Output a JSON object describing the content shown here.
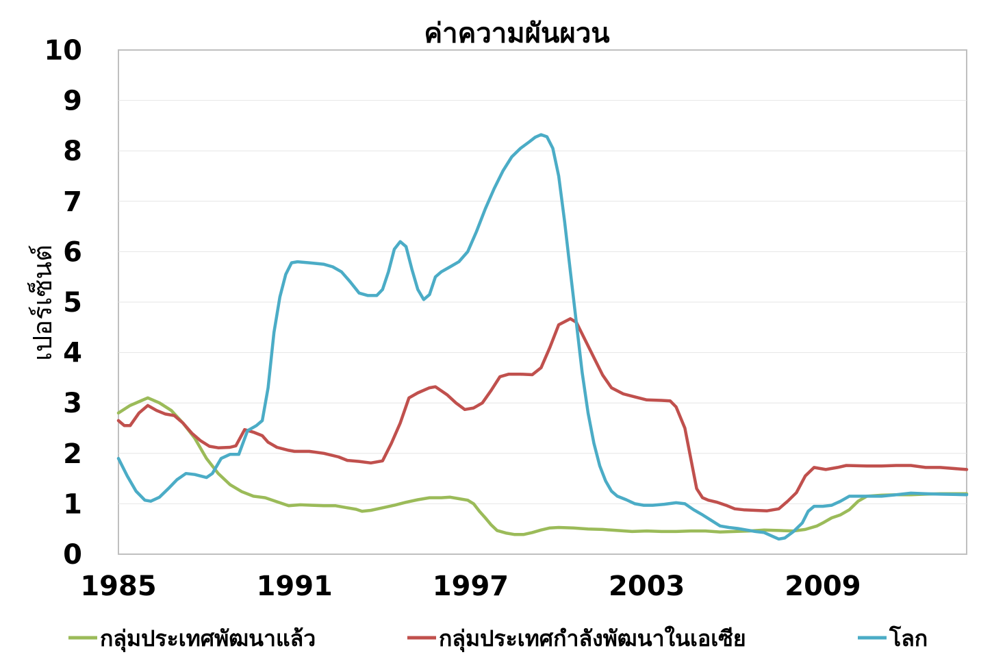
{
  "chart_data": {
    "type": "line",
    "title": "ค่าความผันผวน",
    "ylabel": "เปอร์เซ็นต์",
    "xlabel": "",
    "xlim": [
      1985,
      2013.9
    ],
    "ylim": [
      0,
      10
    ],
    "yticks": [
      0,
      1,
      2,
      3,
      4,
      5,
      6,
      7,
      8,
      9,
      10
    ],
    "xticks": [
      1985,
      1991,
      1997,
      2003,
      2009
    ],
    "grid": "horizontal",
    "legend_position": "bottom",
    "series": [
      {
        "name": "กลุ่มประเทศพัฒนาแล้ว",
        "color": "#9BBB59",
        "points": [
          [
            1985.0,
            2.8
          ],
          [
            1985.4,
            2.95
          ],
          [
            1985.8,
            3.05
          ],
          [
            1986.0,
            3.1
          ],
          [
            1986.4,
            3.0
          ],
          [
            1986.8,
            2.85
          ],
          [
            1987.2,
            2.6
          ],
          [
            1987.6,
            2.3
          ],
          [
            1988.0,
            1.9
          ],
          [
            1988.4,
            1.6
          ],
          [
            1988.8,
            1.38
          ],
          [
            1989.2,
            1.24
          ],
          [
            1989.6,
            1.15
          ],
          [
            1990.0,
            1.12
          ],
          [
            1990.3,
            1.06
          ],
          [
            1990.6,
            1.0
          ],
          [
            1990.8,
            0.96
          ],
          [
            1991.2,
            0.98
          ],
          [
            1991.6,
            0.97
          ],
          [
            1992.0,
            0.96
          ],
          [
            1992.4,
            0.96
          ],
          [
            1992.8,
            0.92
          ],
          [
            1993.1,
            0.89
          ],
          [
            1993.3,
            0.85
          ],
          [
            1993.6,
            0.87
          ],
          [
            1994.0,
            0.92
          ],
          [
            1994.4,
            0.97
          ],
          [
            1994.8,
            1.03
          ],
          [
            1995.2,
            1.08
          ],
          [
            1995.6,
            1.12
          ],
          [
            1996.0,
            1.12
          ],
          [
            1996.3,
            1.13
          ],
          [
            1996.6,
            1.1
          ],
          [
            1996.9,
            1.07
          ],
          [
            1997.1,
            1.0
          ],
          [
            1997.3,
            0.85
          ],
          [
            1997.5,
            0.72
          ],
          [
            1997.7,
            0.58
          ],
          [
            1997.9,
            0.47
          ],
          [
            1998.2,
            0.42
          ],
          [
            1998.5,
            0.39
          ],
          [
            1998.8,
            0.39
          ],
          [
            1999.1,
            0.43
          ],
          [
            1999.4,
            0.48
          ],
          [
            1999.7,
            0.52
          ],
          [
            2000.0,
            0.53
          ],
          [
            2000.5,
            0.52
          ],
          [
            2001.0,
            0.5
          ],
          [
            2001.5,
            0.49
          ],
          [
            2002.0,
            0.47
          ],
          [
            2002.5,
            0.45
          ],
          [
            2003.0,
            0.46
          ],
          [
            2003.5,
            0.45
          ],
          [
            2004.0,
            0.45
          ],
          [
            2004.5,
            0.46
          ],
          [
            2005.0,
            0.46
          ],
          [
            2005.5,
            0.44
          ],
          [
            2006.0,
            0.45
          ],
          [
            2006.5,
            0.46
          ],
          [
            2007.0,
            0.48
          ],
          [
            2007.5,
            0.47
          ],
          [
            2008.0,
            0.46
          ],
          [
            2008.4,
            0.49
          ],
          [
            2008.8,
            0.56
          ],
          [
            2009.0,
            0.62
          ],
          [
            2009.3,
            0.72
          ],
          [
            2009.6,
            0.78
          ],
          [
            2009.9,
            0.88
          ],
          [
            2010.2,
            1.05
          ],
          [
            2010.5,
            1.15
          ],
          [
            2011.0,
            1.17
          ],
          [
            2011.5,
            1.18
          ],
          [
            2012.0,
            1.18
          ],
          [
            2012.5,
            1.19
          ],
          [
            2013.0,
            1.2
          ],
          [
            2013.9,
            1.2
          ]
        ]
      },
      {
        "name": "กลุ่มประเทศกำลังพัฒนาในเอเซีย",
        "color": "#C0504D",
        "points": [
          [
            1985.0,
            2.65
          ],
          [
            1985.2,
            2.55
          ],
          [
            1985.4,
            2.55
          ],
          [
            1985.7,
            2.8
          ],
          [
            1986.0,
            2.95
          ],
          [
            1986.3,
            2.85
          ],
          [
            1986.6,
            2.78
          ],
          [
            1986.9,
            2.75
          ],
          [
            1987.2,
            2.6
          ],
          [
            1987.5,
            2.4
          ],
          [
            1987.8,
            2.25
          ],
          [
            1988.1,
            2.14
          ],
          [
            1988.4,
            2.11
          ],
          [
            1988.8,
            2.12
          ],
          [
            1989.0,
            2.15
          ],
          [
            1989.3,
            2.47
          ],
          [
            1989.6,
            2.42
          ],
          [
            1989.9,
            2.35
          ],
          [
            1990.1,
            2.22
          ],
          [
            1990.4,
            2.12
          ],
          [
            1990.8,
            2.06
          ],
          [
            1991.0,
            2.04
          ],
          [
            1991.5,
            2.04
          ],
          [
            1992.0,
            2.0
          ],
          [
            1992.5,
            1.93
          ],
          [
            1992.8,
            1.86
          ],
          [
            1993.2,
            1.84
          ],
          [
            1993.6,
            1.81
          ],
          [
            1994.0,
            1.85
          ],
          [
            1994.3,
            2.2
          ],
          [
            1994.6,
            2.6
          ],
          [
            1994.9,
            3.1
          ],
          [
            1995.2,
            3.2
          ],
          [
            1995.6,
            3.3
          ],
          [
            1995.8,
            3.32
          ],
          [
            1996.2,
            3.16
          ],
          [
            1996.5,
            3.0
          ],
          [
            1996.8,
            2.87
          ],
          [
            1997.1,
            2.9
          ],
          [
            1997.4,
            3.0
          ],
          [
            1997.7,
            3.25
          ],
          [
            1998.0,
            3.52
          ],
          [
            1998.3,
            3.57
          ],
          [
            1998.7,
            3.57
          ],
          [
            1999.1,
            3.56
          ],
          [
            1999.4,
            3.7
          ],
          [
            1999.7,
            4.1
          ],
          [
            2000.0,
            4.55
          ],
          [
            2000.4,
            4.67
          ],
          [
            2000.6,
            4.6
          ],
          [
            2000.9,
            4.25
          ],
          [
            2001.2,
            3.9
          ],
          [
            2001.5,
            3.55
          ],
          [
            2001.8,
            3.3
          ],
          [
            2002.2,
            3.18
          ],
          [
            2002.6,
            3.12
          ],
          [
            2003.0,
            3.06
          ],
          [
            2003.5,
            3.05
          ],
          [
            2003.8,
            3.04
          ],
          [
            2004.0,
            2.92
          ],
          [
            2004.3,
            2.5
          ],
          [
            2004.5,
            1.9
          ],
          [
            2004.7,
            1.3
          ],
          [
            2004.9,
            1.12
          ],
          [
            2005.1,
            1.07
          ],
          [
            2005.4,
            1.03
          ],
          [
            2005.7,
            0.97
          ],
          [
            2006.0,
            0.9
          ],
          [
            2006.3,
            0.88
          ],
          [
            2006.7,
            0.87
          ],
          [
            2007.1,
            0.86
          ],
          [
            2007.5,
            0.9
          ],
          [
            2007.8,
            1.05
          ],
          [
            2008.1,
            1.22
          ],
          [
            2008.4,
            1.55
          ],
          [
            2008.7,
            1.72
          ],
          [
            2009.1,
            1.68
          ],
          [
            2009.5,
            1.72
          ],
          [
            2009.8,
            1.76
          ],
          [
            2010.5,
            1.75
          ],
          [
            2011.0,
            1.75
          ],
          [
            2011.5,
            1.76
          ],
          [
            2012.0,
            1.76
          ],
          [
            2012.5,
            1.72
          ],
          [
            2013.0,
            1.72
          ],
          [
            2013.9,
            1.68
          ]
        ]
      },
      {
        "name": "โลก",
        "color": "#4BACC6",
        "points": [
          [
            1985.0,
            1.9
          ],
          [
            1985.3,
            1.55
          ],
          [
            1985.6,
            1.25
          ],
          [
            1985.9,
            1.07
          ],
          [
            1986.1,
            1.05
          ],
          [
            1986.4,
            1.13
          ],
          [
            1986.7,
            1.3
          ],
          [
            1987.0,
            1.48
          ],
          [
            1987.3,
            1.6
          ],
          [
            1987.6,
            1.58
          ],
          [
            1988.0,
            1.52
          ],
          [
            1988.2,
            1.6
          ],
          [
            1988.5,
            1.9
          ],
          [
            1988.8,
            1.98
          ],
          [
            1989.1,
            1.98
          ],
          [
            1989.4,
            2.45
          ],
          [
            1989.7,
            2.55
          ],
          [
            1989.9,
            2.65
          ],
          [
            1990.1,
            3.3
          ],
          [
            1990.3,
            4.4
          ],
          [
            1990.5,
            5.1
          ],
          [
            1990.7,
            5.55
          ],
          [
            1990.9,
            5.78
          ],
          [
            1991.1,
            5.8
          ],
          [
            1991.5,
            5.78
          ],
          [
            1992.0,
            5.75
          ],
          [
            1992.3,
            5.7
          ],
          [
            1992.6,
            5.6
          ],
          [
            1992.9,
            5.4
          ],
          [
            1993.2,
            5.18
          ],
          [
            1993.5,
            5.13
          ],
          [
            1993.8,
            5.13
          ],
          [
            1994.0,
            5.25
          ],
          [
            1994.2,
            5.6
          ],
          [
            1994.4,
            6.05
          ],
          [
            1994.6,
            6.2
          ],
          [
            1994.8,
            6.1
          ],
          [
            1995.0,
            5.65
          ],
          [
            1995.2,
            5.25
          ],
          [
            1995.4,
            5.05
          ],
          [
            1995.6,
            5.15
          ],
          [
            1995.8,
            5.5
          ],
          [
            1996.0,
            5.6
          ],
          [
            1996.3,
            5.7
          ],
          [
            1996.6,
            5.8
          ],
          [
            1996.9,
            6.0
          ],
          [
            1997.2,
            6.4
          ],
          [
            1997.5,
            6.85
          ],
          [
            1997.8,
            7.25
          ],
          [
            1998.1,
            7.6
          ],
          [
            1998.4,
            7.88
          ],
          [
            1998.7,
            8.05
          ],
          [
            1999.0,
            8.18
          ],
          [
            1999.2,
            8.27
          ],
          [
            1999.4,
            8.32
          ],
          [
            1999.6,
            8.28
          ],
          [
            1999.8,
            8.05
          ],
          [
            2000.0,
            7.5
          ],
          [
            2000.2,
            6.6
          ],
          [
            2000.4,
            5.6
          ],
          [
            2000.6,
            4.6
          ],
          [
            2000.8,
            3.6
          ],
          [
            2001.0,
            2.8
          ],
          [
            2001.2,
            2.2
          ],
          [
            2001.4,
            1.75
          ],
          [
            2001.6,
            1.45
          ],
          [
            2001.8,
            1.25
          ],
          [
            2002.0,
            1.15
          ],
          [
            2002.3,
            1.08
          ],
          [
            2002.6,
            1.0
          ],
          [
            2002.9,
            0.97
          ],
          [
            2003.2,
            0.97
          ],
          [
            2003.6,
            0.99
          ],
          [
            2004.0,
            1.02
          ],
          [
            2004.3,
            1.0
          ],
          [
            2004.6,
            0.88
          ],
          [
            2004.9,
            0.78
          ],
          [
            2005.2,
            0.67
          ],
          [
            2005.5,
            0.56
          ],
          [
            2005.8,
            0.53
          ],
          [
            2006.1,
            0.51
          ],
          [
            2006.4,
            0.48
          ],
          [
            2006.7,
            0.45
          ],
          [
            2007.0,
            0.43
          ],
          [
            2007.3,
            0.35
          ],
          [
            2007.5,
            0.3
          ],
          [
            2007.7,
            0.32
          ],
          [
            2008.0,
            0.45
          ],
          [
            2008.3,
            0.62
          ],
          [
            2008.5,
            0.85
          ],
          [
            2008.7,
            0.95
          ],
          [
            2009.0,
            0.95
          ],
          [
            2009.3,
            0.97
          ],
          [
            2009.6,
            1.05
          ],
          [
            2009.9,
            1.15
          ],
          [
            2010.2,
            1.15
          ],
          [
            2010.6,
            1.15
          ],
          [
            2011.0,
            1.15
          ],
          [
            2011.5,
            1.18
          ],
          [
            2012.0,
            1.21
          ],
          [
            2012.5,
            1.2
          ],
          [
            2013.0,
            1.19
          ],
          [
            2013.9,
            1.18
          ]
        ]
      }
    ]
  }
}
